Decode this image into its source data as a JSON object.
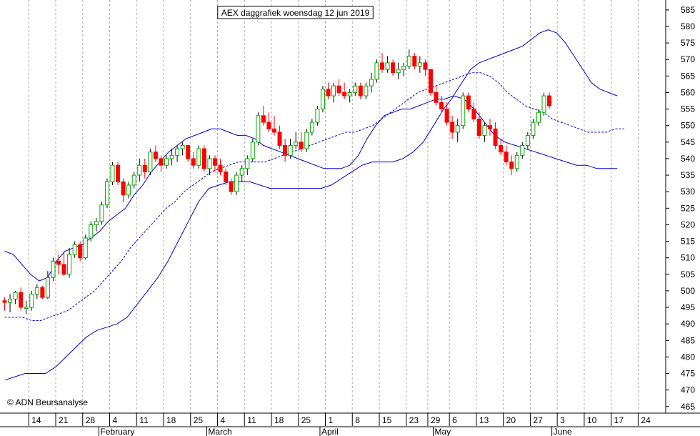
{
  "chart_data": {
    "type": "candlestick",
    "title": "AEX daggrafiek woensdag 12 jun 2019",
    "credit": "© ADN Beursanalyse",
    "ylim": [
      463,
      588
    ],
    "y_ticks": [
      465,
      470,
      475,
      480,
      485,
      490,
      495,
      500,
      505,
      510,
      515,
      520,
      525,
      530,
      535,
      540,
      545,
      550,
      555,
      560,
      565,
      570,
      575,
      580,
      585
    ],
    "x_day_ticks": [
      {
        "label": "14",
        "i": 5
      },
      {
        "label": "21",
        "i": 10
      },
      {
        "label": "28",
        "i": 15
      },
      {
        "label": "4",
        "i": 20
      },
      {
        "label": "11",
        "i": 25
      },
      {
        "label": "18",
        "i": 30
      },
      {
        "label": "25",
        "i": 35
      },
      {
        "label": "4",
        "i": 40
      },
      {
        "label": "11",
        "i": 45
      },
      {
        "label": "18",
        "i": 50
      },
      {
        "label": "25",
        "i": 55
      },
      {
        "label": "1",
        "i": 60
      },
      {
        "label": "8",
        "i": 65
      },
      {
        "label": "15",
        "i": 70
      },
      {
        "label": "23",
        "i": 75
      },
      {
        "label": "29",
        "i": 79
      },
      {
        "label": "6",
        "i": 83
      },
      {
        "label": "13",
        "i": 88
      },
      {
        "label": "20",
        "i": 93
      },
      {
        "label": "27",
        "i": 98
      },
      {
        "label": "3",
        "i": 103
      },
      {
        "label": "10",
        "i": 108
      },
      {
        "label": "17",
        "i": 113
      },
      {
        "label": "24",
        "i": 118
      }
    ],
    "x_month_labels": [
      {
        "label": "February",
        "i": 18
      },
      {
        "label": "March",
        "i": 38
      },
      {
        "label": "April",
        "i": 59
      },
      {
        "label": "May",
        "i": 80
      },
      {
        "label": "June",
        "i": 102
      }
    ],
    "candles": [
      [
        497,
        498,
        494,
        496.5
      ],
      [
        496.5,
        499,
        493.5,
        497.5
      ],
      [
        497.5,
        500,
        496,
        499.5
      ],
      [
        499.5,
        501,
        494,
        495
      ],
      [
        495,
        497,
        493,
        495
      ],
      [
        495,
        500,
        494,
        499
      ],
      [
        499,
        502,
        497.5,
        501
      ],
      [
        501,
        501.5,
        497.5,
        498
      ],
      [
        498,
        506,
        497.5,
        504
      ],
      [
        504,
        510,
        503,
        509
      ],
      [
        509,
        511,
        505,
        508
      ],
      [
        508,
        512,
        504.5,
        505
      ],
      [
        505,
        513,
        504,
        511
      ],
      [
        511,
        515,
        510,
        514
      ],
      [
        514,
        515,
        509,
        510
      ],
      [
        510,
        517,
        509.5,
        516
      ],
      [
        516,
        521,
        515,
        520
      ],
      [
        520,
        522,
        518,
        521
      ],
      [
        521,
        527,
        520,
        526
      ],
      [
        526,
        534,
        525,
        533
      ],
      [
        533,
        539,
        532,
        538
      ],
      [
        538,
        539,
        532,
        533
      ],
      [
        533,
        534,
        527,
        529
      ],
      [
        529,
        533,
        528,
        532
      ],
      [
        532,
        536,
        531,
        535
      ],
      [
        535,
        540,
        533,
        538
      ],
      [
        538,
        540,
        534,
        536
      ],
      [
        536,
        543,
        535,
        542
      ],
      [
        542,
        544,
        539,
        540
      ],
      [
        540,
        541,
        536,
        538
      ],
      [
        538,
        541,
        537,
        540
      ],
      [
        540,
        543,
        538,
        541
      ],
      [
        541,
        544,
        539,
        543
      ],
      [
        543,
        545,
        541,
        544
      ],
      [
        544,
        544,
        539,
        540
      ],
      [
        540,
        542,
        537,
        538
      ],
      [
        538,
        544,
        537,
        543
      ],
      [
        543,
        544,
        536,
        537
      ],
      [
        537,
        541,
        535,
        540
      ],
      [
        540,
        541,
        536,
        538
      ],
      [
        538,
        540,
        535,
        536
      ],
      [
        536,
        537,
        532,
        533
      ],
      [
        533,
        534,
        529,
        530
      ],
      [
        530,
        536,
        529,
        535
      ],
      [
        535,
        538,
        533,
        537
      ],
      [
        537,
        541,
        535,
        540
      ],
      [
        540,
        546,
        539,
        545
      ],
      [
        545,
        554,
        544,
        553
      ],
      [
        553,
        556,
        550,
        551
      ],
      [
        551,
        554,
        548,
        549
      ],
      [
        549,
        553,
        547,
        548
      ],
      [
        548,
        550,
        543,
        544
      ],
      [
        544,
        546,
        539,
        541
      ],
      [
        541,
        546,
        540,
        544
      ],
      [
        544,
        548,
        543,
        545
      ],
      [
        545,
        548,
        542,
        543
      ],
      [
        543,
        549,
        542,
        548
      ],
      [
        548,
        552,
        547,
        551
      ],
      [
        551,
        556,
        550,
        555
      ],
      [
        555,
        562,
        554,
        561
      ],
      [
        561,
        563,
        558,
        559
      ],
      [
        559,
        563,
        557,
        562
      ],
      [
        562,
        564,
        559,
        560
      ],
      [
        560,
        563,
        558,
        559
      ],
      [
        559,
        561,
        557,
        560
      ],
      [
        560,
        563,
        559,
        562
      ],
      [
        562,
        563,
        558,
        559
      ],
      [
        559,
        563,
        558,
        562
      ],
      [
        562,
        566,
        560,
        564
      ],
      [
        564,
        570,
        563,
        569
      ],
      [
        569,
        572,
        566,
        567
      ],
      [
        567,
        571,
        566,
        569
      ],
      [
        569,
        570,
        565,
        566
      ],
      [
        566,
        569,
        564,
        567
      ],
      [
        567,
        569,
        565,
        568
      ],
      [
        568,
        573,
        567,
        571
      ],
      [
        571,
        572,
        567,
        568
      ],
      [
        568,
        571,
        566,
        569
      ],
      [
        569,
        570,
        565,
        567
      ],
      [
        567,
        567,
        559,
        560
      ],
      [
        560,
        562,
        556,
        557
      ],
      [
        557,
        559,
        554,
        555
      ],
      [
        555,
        557,
        550,
        551
      ],
      [
        551,
        553,
        546,
        548
      ],
      [
        548,
        552,
        545,
        550
      ],
      [
        550,
        560,
        549,
        559
      ],
      [
        559,
        560,
        554,
        555
      ],
      [
        555,
        557,
        551,
        552
      ],
      [
        552,
        554,
        546,
        547
      ],
      [
        547,
        551,
        545,
        550
      ],
      [
        550,
        552,
        547,
        549
      ],
      [
        549,
        551,
        543,
        544
      ],
      [
        544,
        546,
        541,
        542
      ],
      [
        542,
        544,
        538,
        539
      ],
      [
        539,
        541,
        535,
        537
      ],
      [
        537,
        542,
        536,
        541
      ],
      [
        541,
        545,
        540,
        544
      ],
      [
        544,
        548,
        543,
        547
      ],
      [
        547,
        552,
        546,
        551
      ],
      [
        551,
        555,
        550,
        554
      ],
      [
        554,
        560,
        553,
        559
      ],
      [
        559,
        560,
        555,
        556
      ]
    ],
    "series": [
      {
        "name": "",
        "style": "upper",
        "values": [
          512,
          511,
          508,
          505,
          503,
          504,
          509,
          512,
          513,
          514,
          516,
          518,
          521,
          523,
          525,
          529,
          532,
          536,
          539,
          542,
          544,
          546,
          547,
          548,
          549,
          549,
          548,
          547,
          547,
          546,
          544,
          543,
          542,
          541,
          540,
          539,
          538,
          537,
          537,
          537,
          538,
          541,
          546,
          550,
          553,
          554,
          555,
          555,
          556,
          557,
          558,
          558,
          559,
          563,
          567,
          569,
          570,
          571,
          572,
          573,
          574,
          576,
          578,
          579,
          578,
          575,
          571,
          567,
          563,
          561,
          560,
          559
        ]
      },
      {
        "name": "",
        "style": "middle",
        "values": [
          492,
          492,
          492,
          491,
          491,
          492,
          493,
          494,
          496,
          498,
          500,
          503,
          506,
          509,
          513,
          516,
          519,
          522,
          525,
          527,
          530,
          532,
          534,
          536,
          537,
          538,
          539,
          539,
          539,
          539,
          540,
          541,
          542,
          543,
          544,
          545,
          546,
          547,
          548,
          548,
          549,
          550,
          552,
          554,
          556,
          558,
          560,
          561,
          562,
          563,
          564,
          565,
          566,
          566,
          565,
          563,
          560,
          558,
          556,
          555,
          554,
          552,
          551,
          550,
          549,
          548,
          548,
          548,
          549,
          549
        ]
      },
      {
        "name": "",
        "style": "lower",
        "values": [
          473,
          474,
          475,
          475,
          475,
          477,
          480,
          483,
          486,
          488,
          489,
          490,
          492,
          496,
          500,
          504,
          509,
          515,
          521,
          527,
          531,
          532,
          533,
          533,
          533,
          532,
          531,
          531,
          531,
          531,
          531,
          531,
          532,
          534,
          536,
          538,
          539,
          539,
          539,
          540,
          542,
          545,
          550,
          555,
          559,
          558,
          555,
          551,
          547,
          545,
          544,
          543,
          542,
          541,
          540,
          539,
          538,
          538,
          537,
          537,
          537
        ]
      }
    ],
    "band_x": [
      [
        0,
        1.6,
        3.2,
        4.8,
        6.4,
        8,
        9.6,
        11.2,
        12.8,
        14.4,
        16,
        17.6,
        19.2,
        20.8,
        22.4,
        24,
        25.6,
        27.2,
        28.8,
        30.4,
        32,
        33.6,
        35.2,
        36.8,
        38.4,
        40,
        41.6,
        43.2,
        44.8,
        46.4,
        48,
        49.6,
        51.2,
        52.8,
        54.4,
        56,
        57.6,
        59.2,
        60.8,
        62.4,
        64,
        65.6,
        67.2,
        68.8,
        70.4,
        72,
        73.6,
        75.2,
        76.8,
        78.4,
        80,
        81.6,
        83.2,
        84.8,
        86.4,
        88,
        89.6,
        91.2,
        92.8,
        94.4,
        96,
        97.6,
        99.2,
        100.8,
        102.4,
        104,
        105.6,
        107.2,
        108.8,
        110.4,
        112,
        113.6
      ],
      [
        0,
        1.66,
        3.33,
        4.99,
        6.66,
        8.32,
        9.99,
        11.65,
        13.32,
        14.98,
        16.65,
        18.31,
        19.98,
        21.64,
        23.31,
        24.97,
        26.64,
        28.3,
        29.97,
        31.63,
        33.3,
        34.96,
        36.63,
        38.29,
        39.96,
        41.62,
        43.29,
        44.95,
        46.62,
        48.28,
        49.95,
        51.61,
        53.28,
        54.94,
        56.61,
        58.27,
        59.94,
        61.6,
        63.27,
        64.93,
        66.6,
        68.26,
        69.93,
        71.59,
        73.26,
        74.92,
        76.59,
        78.25,
        79.92,
        81.58,
        83.25,
        84.91,
        86.58,
        88.24,
        89.91,
        91.57,
        93.24,
        94.9,
        96.57,
        98.23,
        99.9,
        101.56,
        103.23,
        104.89,
        106.56,
        108.22,
        109.89,
        111.55,
        113.22,
        114.88
      ],
      [
        0,
        1.89,
        3.79,
        5.68,
        7.57,
        9.47,
        11.36,
        13.25,
        15.15,
        17.04,
        18.93,
        20.83,
        22.72,
        24.61,
        26.51,
        28.4,
        30.29,
        32.19,
        34.08,
        35.97,
        37.87,
        39.76,
        41.65,
        43.55,
        45.44,
        47.33,
        49.23,
        51.12,
        53.01,
        54.91,
        56.8,
        58.69,
        60.59,
        62.48,
        64.37,
        66.27,
        68.16,
        70.05,
        71.95,
        73.84,
        75.73,
        77.63,
        79.52,
        81.41,
        83.31,
        85.2,
        87.09,
        88.99,
        90.88,
        92.77,
        94.67,
        96.56,
        98.45,
        100.35,
        102.24,
        104.13,
        106.03,
        107.92,
        109.81,
        111.71,
        113.6
      ]
    ],
    "colors": {
      "up": "#00aa00",
      "down": "#ff0000",
      "band": "#0000cc",
      "grid": "#aaaaaa"
    }
  }
}
